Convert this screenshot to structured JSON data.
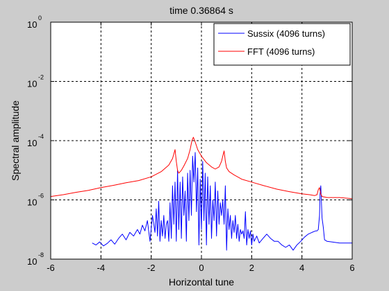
{
  "chart_data": {
    "type": "line",
    "title": "time 0.36864 s",
    "xlabel": "Horizontal tune",
    "ylabel": "Spectral amplitude",
    "xlim": [
      -6,
      6
    ],
    "ylim": [
      1e-08,
      1
    ],
    "yscale": "log",
    "x_ticks": [
      -6,
      -4,
      -2,
      0,
      2,
      4,
      6
    ],
    "y_ticks": [
      {
        "base": "10",
        "exp": "-8",
        "value": 1e-08
      },
      {
        "base": "10",
        "exp": "-6",
        "value": 1e-06
      },
      {
        "base": "10",
        "exp": "-4",
        "value": 0.0001
      },
      {
        "base": "10",
        "exp": "-2",
        "value": 0.01
      },
      {
        "base": "10",
        "exp": "0",
        "value": 1
      }
    ],
    "grid": true,
    "legend_position": "top-right",
    "series": [
      {
        "name": "Sussix (4096 turns)",
        "color": "#0000ff",
        "x": [
          -4.35,
          -4.2,
          -4.05,
          -3.9,
          -3.75,
          -3.6,
          -3.45,
          -3.3,
          -3.15,
          -3.0,
          -2.85,
          -2.7,
          -2.55,
          -2.45,
          -2.35,
          -2.25,
          -2.15,
          -2.05,
          -1.95,
          -1.85,
          -1.8,
          -1.75,
          -1.7,
          -1.65,
          -1.6,
          -1.55,
          -1.5,
          -1.45,
          -1.4,
          -1.35,
          -1.3,
          -1.25,
          -1.2,
          -1.15,
          -1.1,
          -1.05,
          -1.0,
          -0.95,
          -0.9,
          -0.85,
          -0.8,
          -0.75,
          -0.7,
          -0.65,
          -0.6,
          -0.55,
          -0.5,
          -0.45,
          -0.4,
          -0.35,
          -0.3,
          -0.25,
          -0.2,
          -0.15,
          -0.1,
          -0.05,
          0.0,
          0.05,
          0.1,
          0.15,
          0.2,
          0.25,
          0.3,
          0.35,
          0.4,
          0.45,
          0.5,
          0.55,
          0.6,
          0.65,
          0.7,
          0.75,
          0.8,
          0.85,
          0.9,
          0.95,
          1.0,
          1.05,
          1.1,
          1.15,
          1.2,
          1.25,
          1.3,
          1.35,
          1.4,
          1.45,
          1.5,
          1.55,
          1.6,
          1.65,
          1.7,
          1.75,
          1.8,
          1.85,
          1.9,
          1.95,
          2.0,
          2.05,
          2.1,
          2.2,
          2.3,
          2.45,
          2.6,
          2.75,
          2.9,
          3.05,
          3.2,
          3.35,
          3.5,
          3.65,
          3.8,
          3.95,
          4.1,
          4.25,
          4.4,
          4.55,
          4.6,
          4.65,
          4.7,
          4.72,
          4.75,
          4.8,
          4.85,
          4.9,
          5.0,
          5.2,
          5.5,
          5.8,
          6.0
        ],
        "y": [
          3.5e-08,
          3e-08,
          3.8e-08,
          2.8e-08,
          3.4e-08,
          4.5e-08,
          3.2e-08,
          5e-08,
          7e-08,
          4.5e-08,
          8e-08,
          6e-08,
          1e-07,
          7e-08,
          1.4e-07,
          9e-08,
          2e-07,
          4e-08,
          3e-07,
          8e-08,
          5e-07,
          6e-08,
          9e-07,
          4e-08,
          2e-07,
          6e-08,
          3e-07,
          5e-08,
          1.5e-07,
          2e-07,
          4e-08,
          8e-07,
          5e-08,
          3e-06,
          1.5e-07,
          4e-06,
          4e-08,
          1e-05,
          1e-07,
          4e-06,
          5e-08,
          6e-06,
          3e-07,
          2e-06,
          4e-08,
          8e-06,
          2e-07,
          1e-05,
          3e-07,
          3e-05,
          4e-06,
          4e-05,
          4e-07,
          1.2e-05,
          3e-08,
          5e-06,
          1e-07,
          2e-05,
          2e-07,
          8e-06,
          3e-08,
          6e-06,
          1.5e-07,
          3e-06,
          5e-08,
          1e-06,
          2e-07,
          4e-06,
          6e-08,
          2e-06,
          1.5e-07,
          8e-07,
          3e-07,
          1e-06,
          1.5e-07,
          3e-06,
          2e-08,
          5e-07,
          1e-07,
          3e-07,
          5e-08,
          2e-07,
          8e-08,
          3e-07,
          5e-08,
          1.5e-07,
          4e-08,
          1e-07,
          7e-08,
          9e-08,
          5e-08,
          4e-07,
          3e-08,
          1e-07,
          5e-08,
          9e-08,
          3e-08,
          7e-08,
          4e-08,
          6e-08,
          3.5e-08,
          5e-08,
          7e-08,
          5e-08,
          4e-08,
          4e-08,
          3e-08,
          2.5e-08,
          3e-08,
          2e-08,
          3e-08,
          4e-08,
          5.5e-08,
          7e-08,
          8e-08,
          9e-08,
          9e-08,
          1e-07,
          3e-07,
          1.5e-06,
          3e-06,
          2.5e-07,
          1.2e-07,
          4.5e-08,
          4e-08,
          3.8e-08,
          3.5e-08,
          3.5e-08,
          3.5e-08
        ]
      },
      {
        "name": "FFT (4096 turns)",
        "color": "#ff0000",
        "x": [
          -6.0,
          -5.5,
          -5.0,
          -4.5,
          -4.0,
          -3.5,
          -3.0,
          -2.5,
          -2.0,
          -1.6,
          -1.3,
          -1.15,
          -1.05,
          -1.0,
          -0.95,
          -0.9,
          -0.8,
          -0.7,
          -0.55,
          -0.45,
          -0.38,
          -0.32,
          -0.25,
          -0.15,
          0.0,
          0.2,
          0.4,
          0.55,
          0.7,
          0.8,
          0.85,
          0.9,
          0.95,
          1.0,
          1.1,
          1.3,
          1.6,
          2.0,
          2.5,
          3.0,
          3.5,
          4.0,
          4.3,
          4.5,
          4.6,
          4.65,
          4.7,
          4.75,
          4.8,
          5.0,
          5.5,
          6.0
        ],
        "y": [
          1.3e-06,
          1.5e-06,
          1.8e-06,
          2.1e-06,
          2.6e-06,
          3.1e-06,
          3.8e-06,
          4.5e-06,
          6e-06,
          9e-06,
          1.5e-05,
          2.5e-05,
          5e-05,
          2e-05,
          1e-05,
          8e-06,
          1e-05,
          1.4e-05,
          2.5e-05,
          5e-05,
          0.0001,
          0.00013,
          9e-05,
          5e-05,
          3e-05,
          1.8e-05,
          1.3e-05,
          1.1e-05,
          1.3e-05,
          2e-05,
          3e-05,
          4.5e-05,
          2e-05,
          1.2e-05,
          9e-06,
          7e-06,
          5e-06,
          4e-06,
          3e-06,
          2.3e-06,
          1.9e-06,
          1.6e-06,
          1.5e-06,
          1.4e-06,
          1.5e-06,
          2.2e-06,
          2.6e-06,
          1.6e-06,
          1.3e-06,
          1.2e-06,
          1.2e-06,
          1.1e-06
        ]
      }
    ]
  }
}
